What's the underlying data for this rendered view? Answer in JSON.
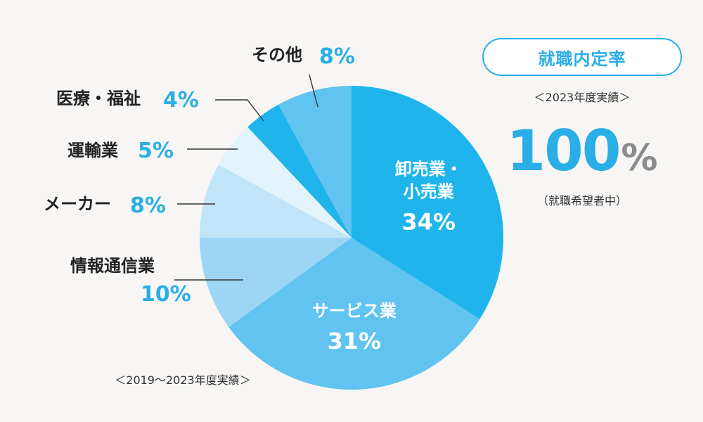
{
  "chart_data": {
    "type": "pie",
    "slices": [
      {
        "name": "卸売業・小売業",
        "name_lines": [
          "卸売業・",
          "小売業"
        ],
        "value": 34,
        "label": "34%",
        "color": "#1fb5ec",
        "label_pos": "inside"
      },
      {
        "name": "サービス業",
        "name_lines": [
          "サービス業"
        ],
        "value": 31,
        "label": "31%",
        "color": "#60c3f0",
        "label_pos": "inside"
      },
      {
        "name": "情報通信業",
        "name_lines": [
          "情報通信業"
        ],
        "value": 10,
        "label": "10%",
        "color": "#9dd6f5",
        "label_pos": "outside-left"
      },
      {
        "name": "メーカー",
        "name_lines": [
          "メーカー"
        ],
        "value": 8,
        "label": "8%",
        "color": "#c0e5f9",
        "label_pos": "outside-left"
      },
      {
        "name": "運輸業",
        "name_lines": [
          "運輸業"
        ],
        "value": 5,
        "label": "5%",
        "color": "#e3f3fc",
        "label_pos": "outside-left"
      },
      {
        "name": "医療・福祉",
        "name_lines": [
          "医療・福祉"
        ],
        "value": 4,
        "label": "4%",
        "color": "#1fb5ec",
        "label_pos": "outside-left"
      },
      {
        "name": "その他",
        "name_lines": [
          "その他"
        ],
        "value": 8,
        "label": "8%",
        "color": "#60c3f0",
        "label_pos": "outside-top"
      }
    ],
    "period_note": "＜2019～2023年度実績＞",
    "start": "12 o'clock",
    "direction": "clockwise"
  },
  "rate_panel": {
    "title": "就職内定率",
    "subtitle": "＜2023年度実績＞",
    "value": "100",
    "unit": "%",
    "note": "（就職希望者中）"
  },
  "colors": {
    "accent": "#2aaee8",
    "text": "#222222",
    "unit_gray": "#8c8c8c",
    "background": "#f7f6f4"
  }
}
